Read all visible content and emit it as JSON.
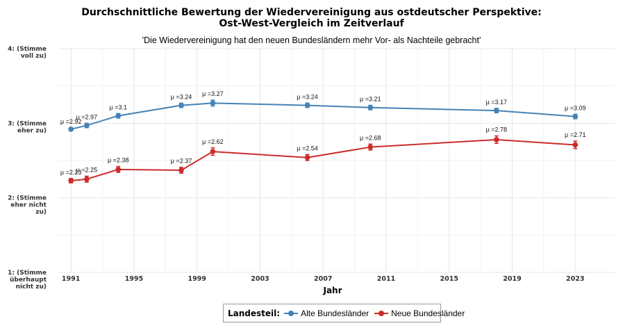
{
  "chart_data": {
    "type": "line",
    "title": "Durchschnittliche Bewertung der Wiedervereinigung aus ostdeutscher Perspektive:",
    "title_line2": "Ost-West-Vergleich im Zeitverlauf",
    "subtitle": "'Die Wiedervereinigung hat den neuen Bundesländern mehr Vor- als Nachteile gebracht'",
    "xlabel": "Jahr",
    "ylabel": "",
    "xlim": [
      1990.2,
      2025.5
    ],
    "ylim": [
      1,
      4
    ],
    "x_ticks": [
      1991,
      1995,
      1999,
      2003,
      2007,
      2011,
      2015,
      2019,
      2023
    ],
    "x_tick_labels": [
      "1991",
      "1995",
      "1999",
      "2003",
      "2007",
      "2011",
      "2015",
      "2019",
      "2023"
    ],
    "y_ticks": [
      1,
      2,
      3,
      4
    ],
    "y_tick_labels": [
      [
        "1: (Stimme",
        "überhaupt",
        "nicht zu)"
      ],
      [
        "2: (Stimme",
        "eher nicht",
        "zu)"
      ],
      [
        "3: (Stimme",
        "eher zu)"
      ],
      [
        "4: (Stimme",
        "voll zu)"
      ]
    ],
    "grid": true,
    "legend_position": "bottom",
    "legend_title": "Landesteil:",
    "series": [
      {
        "name": "Alte Bundesländer",
        "color": "#4682b4",
        "x": [
          1991,
          1992,
          1994,
          1998,
          2000,
          2006,
          2010,
          2018,
          2023
        ],
        "values": [
          2.92,
          2.97,
          3.1,
          3.24,
          3.27,
          3.24,
          3.21,
          3.17,
          3.09
        ],
        "labels": [
          "μ =2.92",
          "μ =2.97",
          "μ =3.1",
          "μ =3.24",
          "μ =3.27",
          "μ =3.24",
          "μ =3.21",
          "μ =3.17",
          "μ =3.09"
        ],
        "err": [
          0.02,
          0.03,
          0.03,
          0.03,
          0.04,
          0.03,
          0.03,
          0.03,
          0.03
        ]
      },
      {
        "name": "Neue Bundesländer",
        "color": "#cb2c2a",
        "x": [
          1991,
          1992,
          1994,
          1998,
          2000,
          2006,
          2010,
          2018,
          2023
        ],
        "values": [
          2.23,
          2.25,
          2.38,
          2.37,
          2.62,
          2.54,
          2.68,
          2.78,
          2.71
        ],
        "labels": [
          "μ =2.23",
          "μ =2.25",
          "μ =2.38",
          "μ =2.37",
          "μ =2.62",
          "μ =2.54",
          "μ =2.68",
          "μ =2.78",
          "μ =2.71"
        ],
        "err": [
          0.03,
          0.04,
          0.04,
          0.04,
          0.05,
          0.04,
          0.04,
          0.05,
          0.05
        ]
      }
    ]
  }
}
